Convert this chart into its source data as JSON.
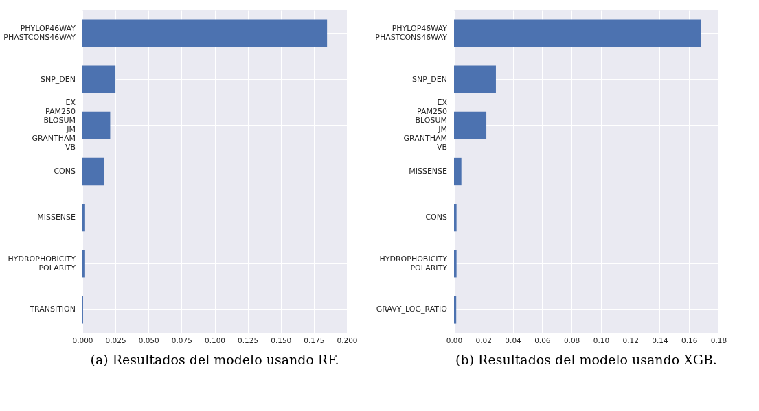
{
  "chart_data": [
    {
      "type": "bar",
      "orientation": "horizontal",
      "title": "(a) Resultados del modelo usando RF.",
      "categories": [
        "PHYLOP46WAY\nPHASTCONS46WAY",
        "SNP_DEN",
        "EX\nPAM250\nBLOSUM\nJM\nGRANTHAM\nVB",
        "CONS",
        "MISSENSE",
        "HYDROPHOBICITY\nPOLARITY",
        "TRANSITION"
      ],
      "values": [
        0.185,
        0.025,
        0.021,
        0.0165,
        0.002,
        0.002,
        0.0005
      ],
      "color": "#4c72b0",
      "xlim": [
        0,
        0.2
      ],
      "xticks": [
        {
          "value": 0,
          "label": "0.000"
        },
        {
          "value": 0.025,
          "label": "0.025"
        },
        {
          "value": 0.05,
          "label": "0.050"
        },
        {
          "value": 0.075,
          "label": "0.075"
        },
        {
          "value": 0.1,
          "label": "0.100"
        },
        {
          "value": 0.125,
          "label": "0.125"
        },
        {
          "value": 0.15,
          "label": "0.150"
        },
        {
          "value": 0.175,
          "label": "0.175"
        },
        {
          "value": 0.2,
          "label": "0.200"
        }
      ],
      "grid": true
    },
    {
      "type": "bar",
      "orientation": "horizontal",
      "title": "(b) Resultados del modelo usando XGB.",
      "categories": [
        "PHYLOP46WAY\nPHASTCONS46WAY",
        "SNP_DEN",
        "EX\nPAM250\nBLOSUM\nJM\nGRANTHAM\nVB",
        "MISSENSE",
        "CONS",
        "HYDROPHOBICITY\nPOLARITY",
        "GRAVY_LOG_RATIO"
      ],
      "values": [
        0.168,
        0.0285,
        0.022,
        0.005,
        0.0017,
        0.0017,
        0.0015
      ],
      "color": "#4c72b0",
      "xlim": [
        0,
        0.18
      ],
      "xticks": [
        {
          "value": 0,
          "label": "0.00"
        },
        {
          "value": 0.02,
          "label": "0.02"
        },
        {
          "value": 0.04,
          "label": "0.04"
        },
        {
          "value": 0.06,
          "label": "0.06"
        },
        {
          "value": 0.08,
          "label": "0.08"
        },
        {
          "value": 0.1,
          "label": "0.10"
        },
        {
          "value": 0.12,
          "label": "0.12"
        },
        {
          "value": 0.14,
          "label": "0.14"
        },
        {
          "value": 0.16,
          "label": "0.16"
        },
        {
          "value": 0.18,
          "label": "0.18"
        }
      ],
      "grid": true
    }
  ]
}
